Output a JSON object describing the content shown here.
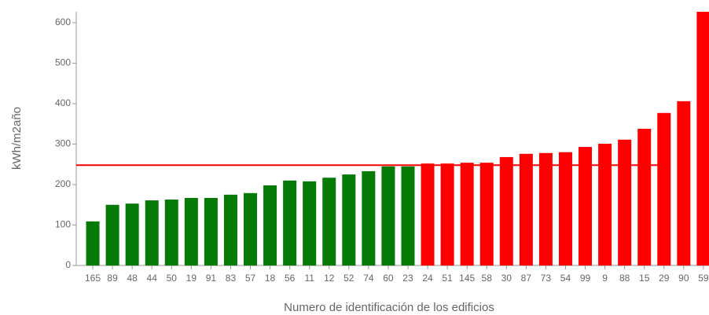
{
  "chart_data": {
    "type": "bar",
    "categories": [
      "165",
      "89",
      "48",
      "44",
      "50",
      "19",
      "91",
      "83",
      "57",
      "18",
      "56",
      "11",
      "12",
      "52",
      "74",
      "60",
      "23",
      "24",
      "51",
      "145",
      "58",
      "30",
      "87",
      "73",
      "54",
      "99",
      "9",
      "88",
      "15",
      "29",
      "90",
      "59"
    ],
    "values": [
      109,
      150,
      153,
      161,
      163,
      167,
      167,
      175,
      179,
      198,
      210,
      208,
      217,
      225,
      233,
      245,
      245,
      252,
      252,
      254,
      254,
      268,
      276,
      278,
      280,
      293,
      301,
      311,
      338,
      377,
      406,
      627
    ],
    "colors": [
      "#067a06",
      "#067a06",
      "#067a06",
      "#067a06",
      "#067a06",
      "#067a06",
      "#067a06",
      "#067a06",
      "#067a06",
      "#067a06",
      "#067a06",
      "#067a06",
      "#067a06",
      "#067a06",
      "#067a06",
      "#067a06",
      "#067a06",
      "#ff0000",
      "#ff0000",
      "#ff0000",
      "#ff0000",
      "#ff0000",
      "#ff0000",
      "#ff0000",
      "#ff0000",
      "#ff0000",
      "#ff0000",
      "#ff0000",
      "#ff0000",
      "#ff0000",
      "#ff0000",
      "#ff0000"
    ],
    "reference_line": {
      "value": 248,
      "color": "#ff0000"
    },
    "ylim": [
      0,
      627
    ],
    "yticks": [
      0,
      100,
      200,
      300,
      400,
      500,
      600
    ],
    "ylabel": "kWh/m2año",
    "xlabel": "Numero de identificación de los edificios"
  }
}
